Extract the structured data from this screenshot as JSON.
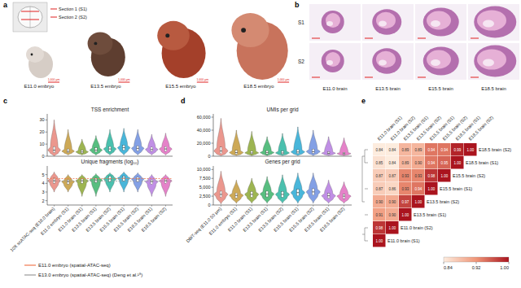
{
  "panel_labels": [
    "a",
    "b",
    "c",
    "d",
    "e"
  ],
  "panel_a": {
    "inset_labels": [
      "Section 1 (S1)",
      "Section 2 (S2)"
    ],
    "embryos": [
      "E11.0 embryo",
      "E13.5 embryo",
      "E15.5 embryo",
      "E18.5 embryo"
    ],
    "scale_bar_label": "1,000 μm"
  },
  "panel_b": {
    "rows": [
      "S1",
      "S2"
    ],
    "columns": [
      "E11.0 brain",
      "E13.5 brain",
      "E15.5 brain",
      "E18.5 brain"
    ]
  },
  "chart_data": [
    {
      "type": "violin",
      "categories": [
        "10X scATAC-seq (E18.0 brain)",
        "E11.0 embryo (S1)",
        "E11.0 brain (S1)",
        "E13.5 brain (S1)",
        "E13.5 brain (S2)",
        "E15.5 brain (S1)",
        "E15.5 brain (S2)",
        "E18.5 brain (S1)",
        "E18.5 brain (S2)"
      ],
      "colors": [
        "#e8857a",
        "#c49a3a",
        "#8ca832",
        "#3bb36a",
        "#2ab5a0",
        "#29a9d4",
        "#6d8fe0",
        "#b57be0",
        "#e06cc0"
      ],
      "legend": "bottom",
      "subplots": [
        {
          "title": "TSS enrichment",
          "ylim": [
            0,
            35
          ],
          "yticks": [
            0,
            10,
            20,
            30
          ],
          "min": [
            0,
            1,
            1,
            1,
            1,
            1,
            1,
            1,
            1
          ],
          "q1": [
            3,
            3,
            2.5,
            3.5,
            4,
            5,
            4.5,
            4,
            4
          ],
          "median": [
            5,
            4,
            3.5,
            5,
            6,
            7,
            6.5,
            5.5,
            6
          ],
          "q3": [
            8,
            6,
            5,
            7,
            8,
            9,
            8.5,
            7.5,
            8
          ],
          "max": [
            30,
            22,
            14,
            17,
            22,
            23,
            22,
            18,
            19
          ]
        },
        {
          "title": "Unique fragments (log₁₀)",
          "ylim": [
            1.5,
            6
          ],
          "yticks": [
            2,
            3,
            4,
            5
          ],
          "min": [
            3,
            3,
            2.5,
            2.5,
            3,
            3,
            3,
            2.5,
            2.5
          ],
          "q1": [
            4,
            3.9,
            4,
            4.1,
            4.2,
            4.3,
            4.2,
            3.9,
            4
          ],
          "median": [
            4.3,
            4.2,
            4.3,
            4.4,
            4.5,
            4.6,
            4.5,
            4.2,
            4.3
          ],
          "q3": [
            4.6,
            4.4,
            4.5,
            4.6,
            4.8,
            4.8,
            4.7,
            4.4,
            4.5
          ],
          "max": [
            5.3,
            5,
            5,
            5.1,
            5.2,
            5.3,
            5.2,
            5,
            5
          ],
          "reference_lines": [
            {
              "name": "E11.0 embryo (spatial-ATAC-seq)",
              "color": "#f07850",
              "value": 4.55
            },
            {
              "name": "E13.0 embryo (spatial-ATAC-seq) (Deng et al.¹⁸)",
              "color": "#999999",
              "value": 4.25
            }
          ]
        }
      ]
    },
    {
      "type": "violin",
      "categories": [
        "DBiT-seq (E11.0 50 μm)",
        "E11.0 embryo (S1)",
        "E11.0 brain (S1)",
        "E13.5 brain (S1)",
        "E13.5 brain (S2)",
        "E15.5 brain (S1)",
        "E15.5 brain (S2)",
        "E18.5 brain (S1)",
        "E18.5 brain (S2)"
      ],
      "colors": [
        "#e8857a",
        "#c49a3a",
        "#8ca832",
        "#3bb36a",
        "#2ab5a0",
        "#29a9d4",
        "#6d8fe0",
        "#b57be0",
        "#e06cc0"
      ],
      "subplots": [
        {
          "title": "UMIs per grid",
          "ylim": [
            0,
            65000
          ],
          "yticks": [
            0,
            {
              "value": 20000,
              "label": "20,000"
            },
            {
              "value": 40000,
              "label": "40,000"
            },
            {
              "value": 60000,
              "label": "60,000"
            }
          ],
          "min": [
            500,
            1000,
            800,
            800,
            1000,
            1000,
            1000,
            800,
            800
          ],
          "q1": [
            4000,
            3000,
            3500,
            3500,
            3000,
            4000,
            4500,
            3000,
            2500
          ],
          "median": [
            8000,
            5500,
            5000,
            5500,
            5000,
            6500,
            7000,
            4500,
            4000
          ],
          "q3": [
            14000,
            9000,
            8000,
            8500,
            8000,
            10000,
            11000,
            7000,
            6000
          ],
          "max": [
            58000,
            40000,
            38000,
            30000,
            35000,
            45000,
            40000,
            30000,
            28000
          ]
        },
        {
          "title": "Genes per grid",
          "ylim": [
            0,
            11000
          ],
          "yticks": [
            0,
            {
              "value": 2500,
              "label": "2,500"
            },
            {
              "value": 5000,
              "label": "5,000"
            },
            {
              "value": 7500,
              "label": "7,500"
            },
            {
              "value": 10000,
              "label": "10,000"
            }
          ],
          "min": [
            300,
            500,
            500,
            500,
            500,
            500,
            500,
            500,
            500
          ],
          "q1": [
            2200,
            2000,
            2200,
            2300,
            2200,
            2600,
            2800,
            1900,
            1800
          ],
          "median": [
            3000,
            2700,
            3000,
            3100,
            3000,
            3500,
            3700,
            2600,
            2500
          ],
          "q3": [
            3900,
            3400,
            3800,
            3900,
            3800,
            4400,
            4600,
            3300,
            3100
          ],
          "max": [
            9500,
            7000,
            7500,
            8000,
            8500,
            9000,
            9000,
            7000,
            6500
          ]
        }
      ]
    },
    {
      "type": "heatmap",
      "rows": [
        "E18.5 brain (S2)",
        "E18.5 brain (S1)",
        "E15.5 brain (S2)",
        "E15.5 brain (S1)",
        "E13.5 brain (S2)",
        "E13.5 brain (S1)",
        "E11.0 brain (S2)",
        "E11.0 brain (S1)"
      ],
      "columns": [
        "E11.0 brain (S1)",
        "E11.0 brain (S2)",
        "E13.5 brain (S1)",
        "E13.5 brain (S2)",
        "E15.5 brain (S1)",
        "E15.5 brain (S2)",
        "E18.5 brain (S1)",
        "E18.5 brain (S2)"
      ],
      "cells": [
        [
          0.84,
          0.84,
          0.89,
          0.89,
          0.94,
          0.94,
          0.99,
          1
        ],
        [
          0.85,
          0.84,
          0.89,
          0.9,
          0.94,
          0.95,
          1
        ],
        [
          0.87,
          0.87,
          0.93,
          0.93,
          0.98,
          1
        ],
        [
          0.87,
          0.86,
          0.93,
          0.94,
          1
        ],
        [
          0.9,
          0.9,
          0.97,
          1
        ],
        [
          0.91,
          0.9,
          1
        ],
        [
          0.98,
          1
        ],
        [
          1
        ]
      ],
      "value_labels": [
        [
          "0.84",
          "0.84",
          "0.89",
          "0.89",
          "0.94",
          "0.94",
          "0.99",
          "1.00"
        ],
        [
          "0.85",
          "0.84",
          "0.89",
          "0.90",
          "0.94",
          "0.95",
          "1.00"
        ],
        [
          "0.87",
          "0.87",
          "0.93",
          "0.93",
          "0.98",
          "1.00"
        ],
        [
          "0.87",
          "0.86",
          "0.93",
          "0.94",
          "1.00"
        ],
        [
          "0.90",
          "0.90",
          "0.97",
          "1.00"
        ],
        [
          "0.91",
          "0.90",
          "1.00"
        ],
        [
          "0.98",
          "1.00"
        ],
        [
          "1.00"
        ]
      ],
      "data_labels": true,
      "colorbar": {
        "range": [
          0.84,
          1
        ],
        "ticks": [
          0.84,
          0.92,
          {
            "value": 1,
            "label": "1.00"
          }
        ]
      }
    }
  ]
}
